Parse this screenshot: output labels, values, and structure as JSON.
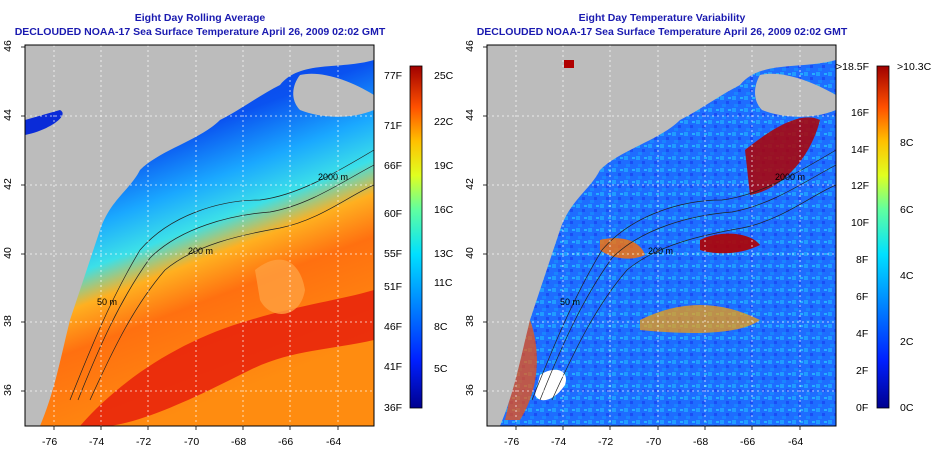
{
  "left": {
    "title1": "Eight Day Rolling Average",
    "title2": "DECLOUDED NOAA-17 Sea Surface Temperature April 26, 2009 02:02 GMT",
    "contours": [
      "50 m",
      "200 m",
      "2000 m"
    ],
    "colorbar_left": [
      "77F",
      "71F",
      "66F",
      "60F",
      "55F",
      "51F",
      "46F",
      "41F",
      "36F"
    ],
    "colorbar_right": [
      "25C",
      "22C",
      "19C",
      "16C",
      "13C",
      "11C",
      "8C",
      "5C"
    ]
  },
  "right": {
    "title1": "Eight Day Temperature Variability",
    "title2": "DECLOUDED NOAA-17 Sea Surface Temperature April 26, 2009 02:02 GMT",
    "contours": [
      "50 m",
      "200 m",
      "2000 m"
    ],
    "colorbar_left": [
      ">18.5F",
      "16F",
      "14F",
      "12F",
      "10F",
      "8F",
      "6F",
      "4F",
      "2F",
      "0F"
    ],
    "colorbar_right": [
      ">10.3C",
      "8C",
      "6C",
      "4C",
      "2C",
      "0C"
    ]
  },
  "axes": {
    "x_ticks": [
      "-76",
      "-74",
      "-72",
      "-70",
      "-68",
      "-66",
      "-64"
    ],
    "y_ticks": [
      "36",
      "38",
      "40",
      "42",
      "44",
      "46"
    ]
  },
  "colors": {
    "land": "#bcbcbc",
    "title": "#1a1ab0"
  }
}
